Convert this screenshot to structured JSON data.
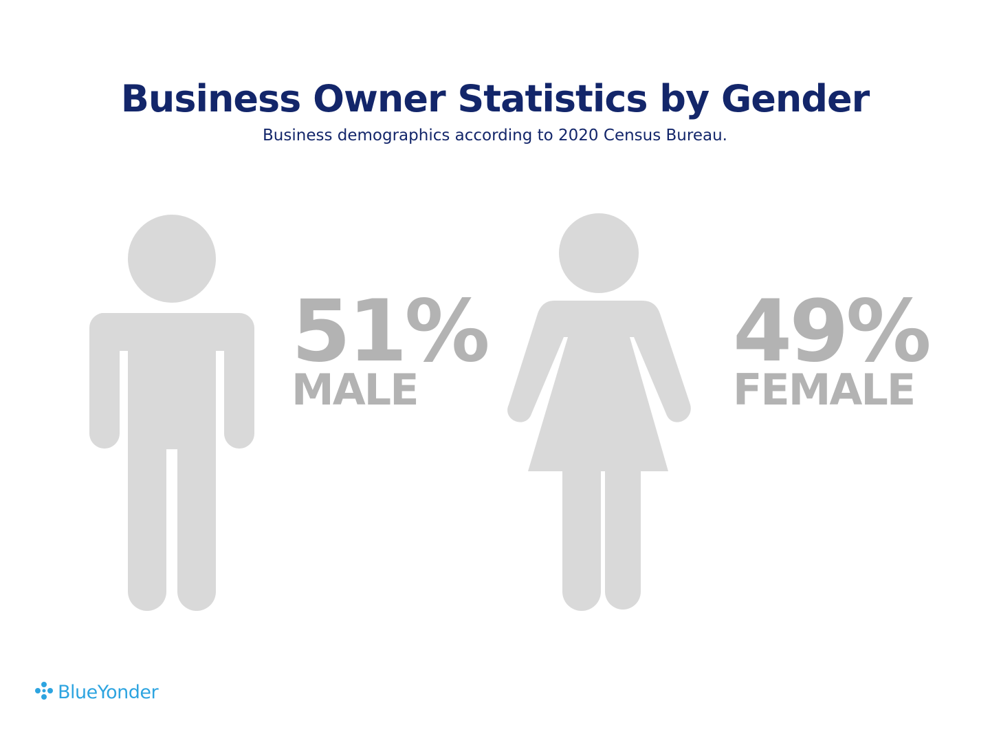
{
  "header": {
    "title": "Business Owner Statistics by Gender",
    "subtitle": "Business demographics according to 2020 Census Bureau."
  },
  "stats": [
    {
      "percent": "51%",
      "label": "MALE",
      "icon": "male-person-icon"
    },
    {
      "percent": "49%",
      "label": "FEMALE",
      "icon": "female-person-icon"
    }
  ],
  "brand": {
    "name": "BlueYonder",
    "icon": "blue-yonder-logo-icon",
    "color": "#2da4e0"
  },
  "colors": {
    "title": "#13266a",
    "figure": "#d9d9d9",
    "stat_text": "#b3b3b3"
  }
}
